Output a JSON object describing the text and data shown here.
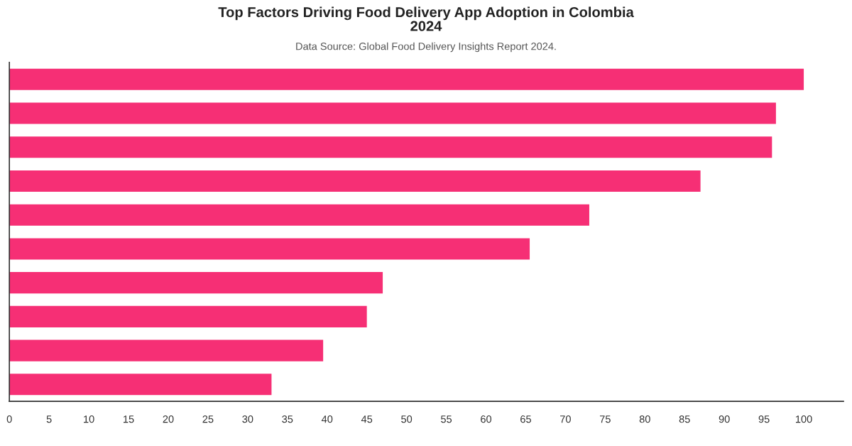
{
  "chart_data": {
    "type": "bar",
    "orientation": "horizontal",
    "title": "Top Factors Driving Food Delivery App Adoption in Colombia\n2024",
    "subtitle": "Data Source: Global Food Delivery Insights Report 2024.",
    "categories": [
      null,
      null,
      null,
      null,
      null,
      null,
      null,
      null,
      null,
      null
    ],
    "values": [
      100,
      96.5,
      96,
      87,
      73,
      65.5,
      47,
      45,
      39.5,
      33
    ],
    "color": "#f62f75",
    "xlim": [
      0,
      105
    ],
    "xticks": [
      0,
      5,
      10,
      15,
      20,
      25,
      30,
      35,
      40,
      45,
      50,
      55,
      60,
      65,
      70,
      75,
      80,
      85,
      90,
      95,
      100
    ],
    "grid": false,
    "legend": false
  }
}
